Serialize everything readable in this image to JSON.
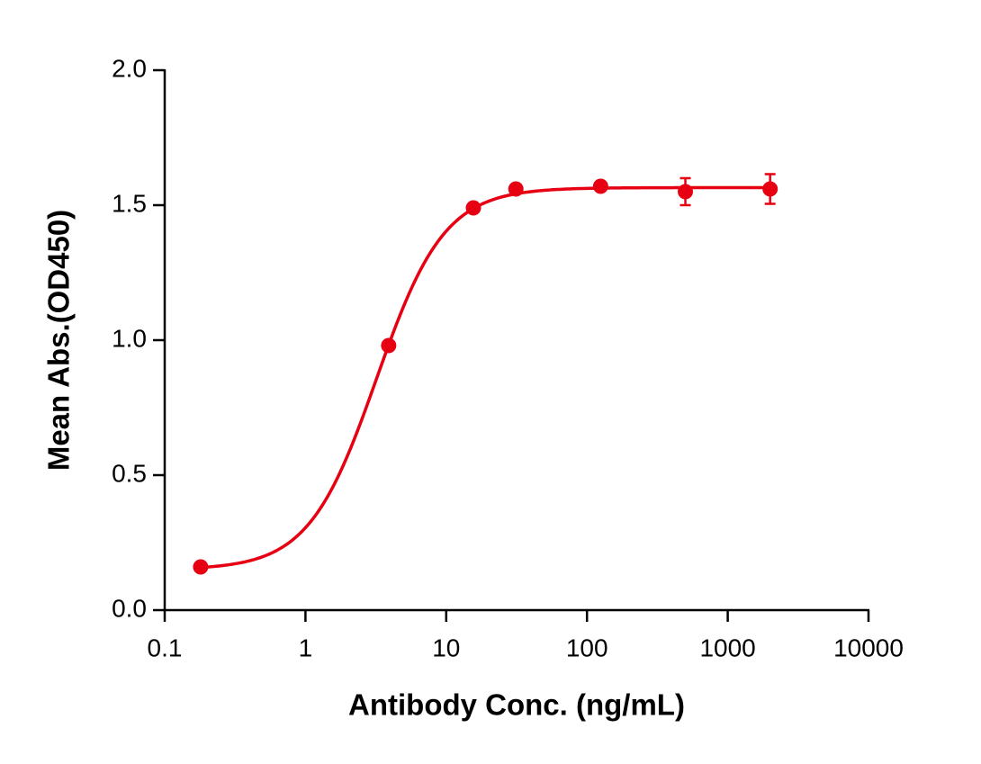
{
  "chart_data": {
    "type": "scatter",
    "xlabel": "Antibody Conc. (ng/mL)",
    "ylabel": "Mean Abs.(OD450)",
    "x_scale": "log",
    "xlim": [
      0.1,
      10000
    ],
    "xticks": [
      0.1,
      1,
      10,
      100,
      1000,
      10000
    ],
    "ylim": [
      0,
      2
    ],
    "yticks": [
      {
        "value": 0,
        "label": "0.0"
      },
      0.5,
      {
        "value": 1,
        "label": "1.0"
      },
      1.5,
      {
        "value": 2,
        "label": "2.0"
      }
    ],
    "color": "#e60012",
    "x": [
      0.18,
      3.9,
      15.6,
      31.25,
      125,
      500,
      2000
    ],
    "values": [
      0.16,
      0.98,
      1.49,
      1.56,
      1.57,
      1.55,
      1.56
    ],
    "errors": [
      null,
      null,
      null,
      null,
      null,
      0.05,
      0.055
    ],
    "fit": {
      "bottom": 0.15,
      "top": 1.565,
      "ec50": 3.2,
      "hill": 1.8
    }
  }
}
